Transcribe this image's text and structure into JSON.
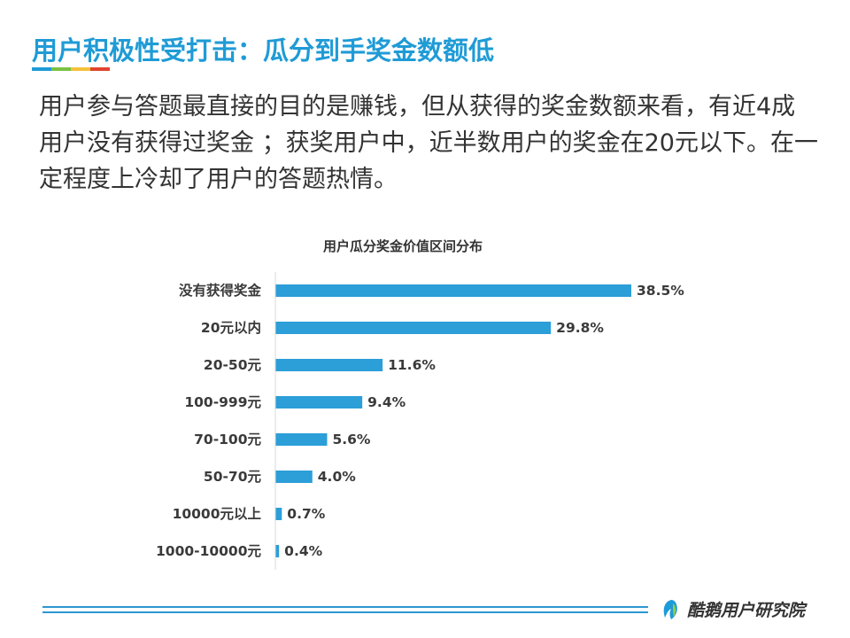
{
  "slide": {
    "title": "用户积极性受打击：瓜分到手奖金数额低",
    "intro": "用户参与答题最直接的目的是赚钱，但从获得的奖金数额来看，有近4成用户没有获得过奖金 ；获奖用户中，近半数用户的奖金在20元以下。在一定程度上冷却了用户的答题热情。",
    "rule_colors": [
      "#1f9bd6",
      "#7cc143",
      "#f3c13a",
      "#e0452f"
    ],
    "accent_color": "#1f9bd6",
    "bar_color": "#2c9ed8"
  },
  "chart_data": {
    "type": "bar",
    "orientation": "horizontal",
    "title": "用户瓜分奖金价值区间分布",
    "categories": [
      "没有获得奖金",
      "20元以内",
      "20-50元",
      "100-999元",
      "70-100元",
      "50-70元",
      "10000元以上",
      "1000-10000元"
    ],
    "values": [
      38.5,
      29.8,
      11.6,
      9.4,
      5.6,
      4.0,
      0.7,
      0.4
    ],
    "value_labels": [
      "38.5%",
      "29.8%",
      "11.6%",
      "9.4%",
      "5.6%",
      "4.0%",
      "0.7%",
      "0.4%"
    ],
    "xlim": [
      0,
      40
    ],
    "grid": false,
    "legend": "none"
  },
  "footer": {
    "brand": "酷鹅用户研究院",
    "logo_icon": "penguin-logo-icon"
  }
}
